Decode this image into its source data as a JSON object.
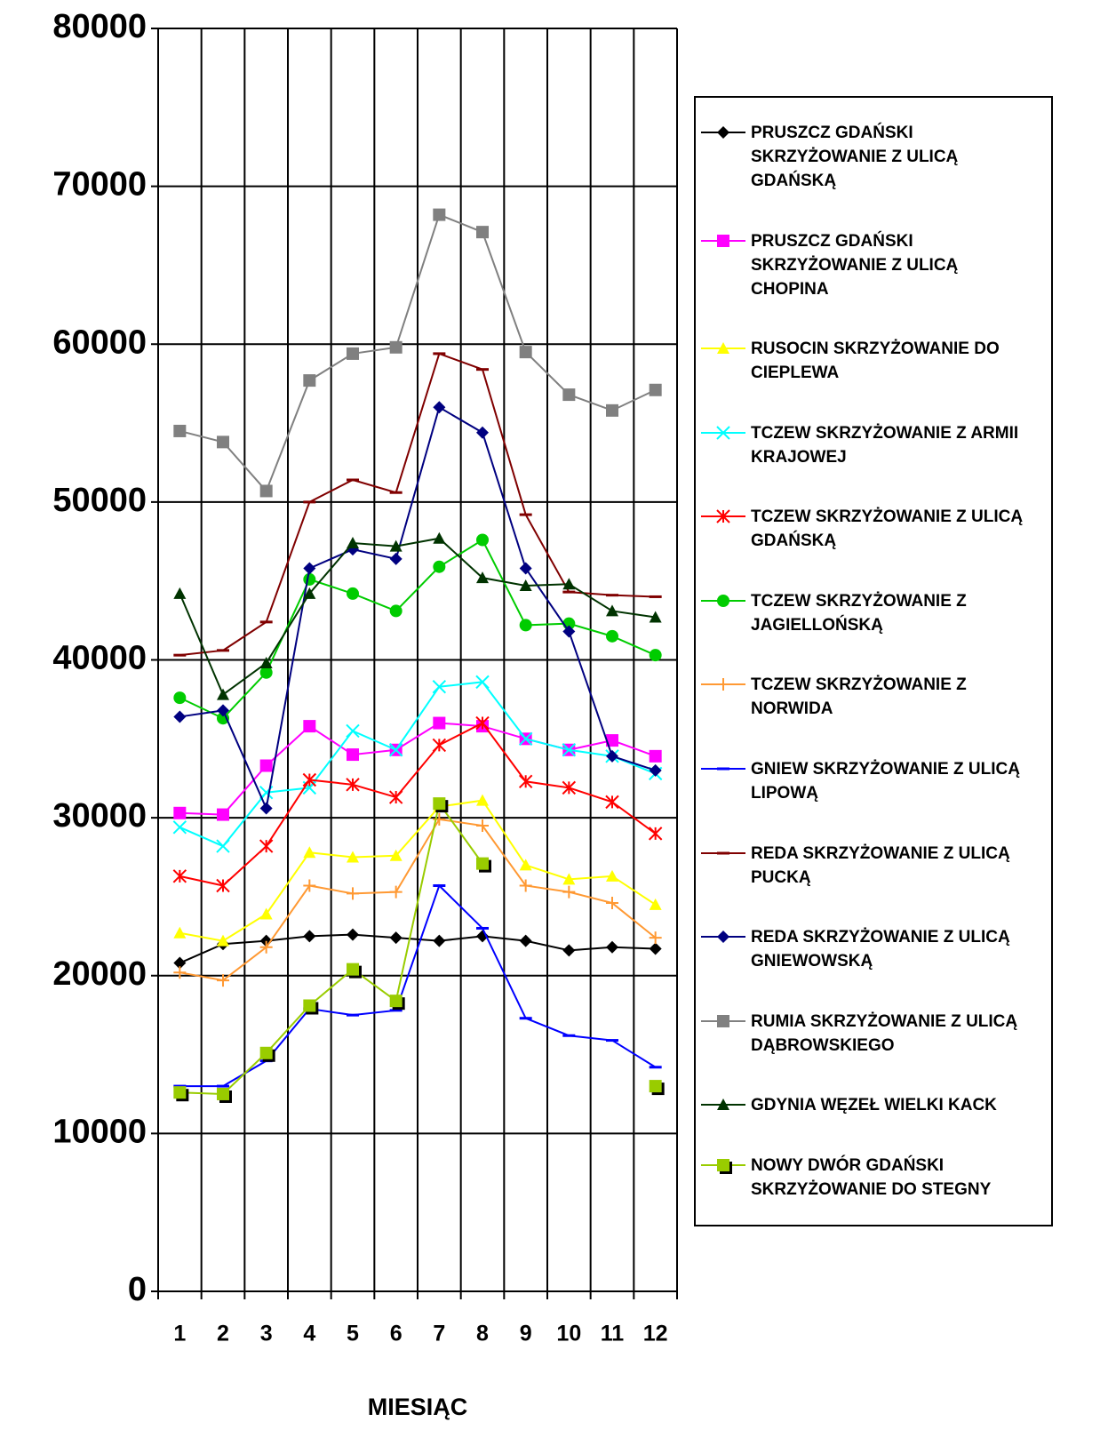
{
  "chart_data": {
    "type": "line",
    "x_label": "MIESIĄC",
    "categories": [
      "1",
      "2",
      "3",
      "4",
      "5",
      "6",
      "7",
      "8",
      "9",
      "10",
      "11",
      "12"
    ],
    "ylim": [
      0,
      80000
    ],
    "yticks": [
      0,
      10000,
      20000,
      30000,
      40000,
      50000,
      60000,
      70000,
      80000
    ],
    "grid": true,
    "legend": "right",
    "series": [
      {
        "name": "PRUSZCZ GDAŃSKI SKRZYŻOWANIE Z ULICĄ GDAŃSKĄ",
        "color": "#000000",
        "marker": "diamond",
        "values": [
          20800,
          22000,
          22200,
          22500,
          22600,
          22400,
          22200,
          22500,
          22200,
          21600,
          21800,
          21700
        ]
      },
      {
        "name": "PRUSZCZ GDAŃSKI SKRZYŻOWANIE Z ULICĄ CHOPINA",
        "color": "#ff00ff",
        "marker": "square",
        "values": [
          30300,
          30200,
          33300,
          35800,
          34000,
          34300,
          36000,
          35800,
          35000,
          34300,
          34900,
          33900
        ]
      },
      {
        "name": "RUSOCIN SKRZYŻOWANIE DO CIEPLEWA",
        "color": "#ffff00",
        "marker": "triangle",
        "values": [
          22700,
          22200,
          23900,
          27800,
          27500,
          27600,
          30700,
          31100,
          27000,
          26100,
          26300,
          24500
        ]
      },
      {
        "name": "TCZEW SKRZYŻOWANIE Z ARMII KRAJOWEJ",
        "color": "#00ffff",
        "marker": "x",
        "values": [
          29400,
          28200,
          31600,
          31900,
          35500,
          34300,
          38300,
          38600,
          35000,
          34300,
          33900,
          32800
        ]
      },
      {
        "name": "TCZEW SKRZYŻOWANIE Z ULICĄ GDAŃSKĄ",
        "color": "#ff0000",
        "marker": "star",
        "values": [
          26300,
          25700,
          28200,
          32400,
          32100,
          31300,
          34600,
          36000,
          32300,
          31900,
          31000,
          29000
        ]
      },
      {
        "name": "TCZEW SKRZYŻOWANIE Z JAGIELLOŃSKĄ",
        "color": "#00cc00",
        "marker": "circle",
        "values": [
          37600,
          36300,
          39200,
          45100,
          44200,
          43100,
          45900,
          47600,
          42200,
          42300,
          41500,
          40300
        ]
      },
      {
        "name": "TCZEW SKRZYŻOWANIE Z NORWIDA",
        "color": "#ff9933",
        "marker": "plus",
        "values": [
          20200,
          19700,
          21800,
          25700,
          25200,
          25300,
          29900,
          29500,
          25700,
          25300,
          24600,
          22400
        ]
      },
      {
        "name": "GNIEW SKRZYŻOWANIE Z ULICĄ LIPOWĄ",
        "color": "#0000ff",
        "marker": "dash",
        "values": [
          13000,
          13000,
          14600,
          17900,
          17500,
          17800,
          25700,
          23000,
          17300,
          16200,
          15900,
          14200
        ]
      },
      {
        "name": "REDA SKRZYŻOWANIE Z ULICĄ PUCKĄ",
        "color": "#800000",
        "marker": "dash",
        "values": [
          40300,
          40600,
          42400,
          50000,
          51400,
          50600,
          59400,
          58400,
          49200,
          44300,
          44100,
          44000
        ]
      },
      {
        "name": "REDA SKRZYŻOWANIE Z ULICĄ GNIEWOWSKĄ",
        "color": "#000080",
        "marker": "diamond",
        "values": [
          36400,
          36800,
          30600,
          45800,
          47000,
          46400,
          56000,
          54400,
          45800,
          41800,
          33900,
          33000
        ]
      },
      {
        "name": "RUMIA SKRZYŻOWANIE Z ULICĄ DĄBROWSKIEGO",
        "color": "#808080",
        "marker": "square",
        "values": [
          54500,
          53800,
          50700,
          57700,
          59400,
          59800,
          68200,
          67100,
          59500,
          56800,
          55800,
          57100
        ]
      },
      {
        "name": "GDYNIA WĘZEŁ WIELKI KACK",
        "color": "#003300",
        "marker": "triangle",
        "values": [
          44200,
          37800,
          39800,
          44200,
          47400,
          47200,
          47700,
          45200,
          44700,
          44800,
          43100,
          42700
        ]
      },
      {
        "name": "NOWY DWÓR GDAŃSKI SKRZYŻOWANIE DO STEGNY",
        "color": "#99cc00",
        "marker": "shadowsquare",
        "values": [
          12600,
          12500,
          15100,
          18100,
          20400,
          18400,
          30900,
          27100,
          null,
          null,
          null,
          13000
        ]
      }
    ]
  }
}
